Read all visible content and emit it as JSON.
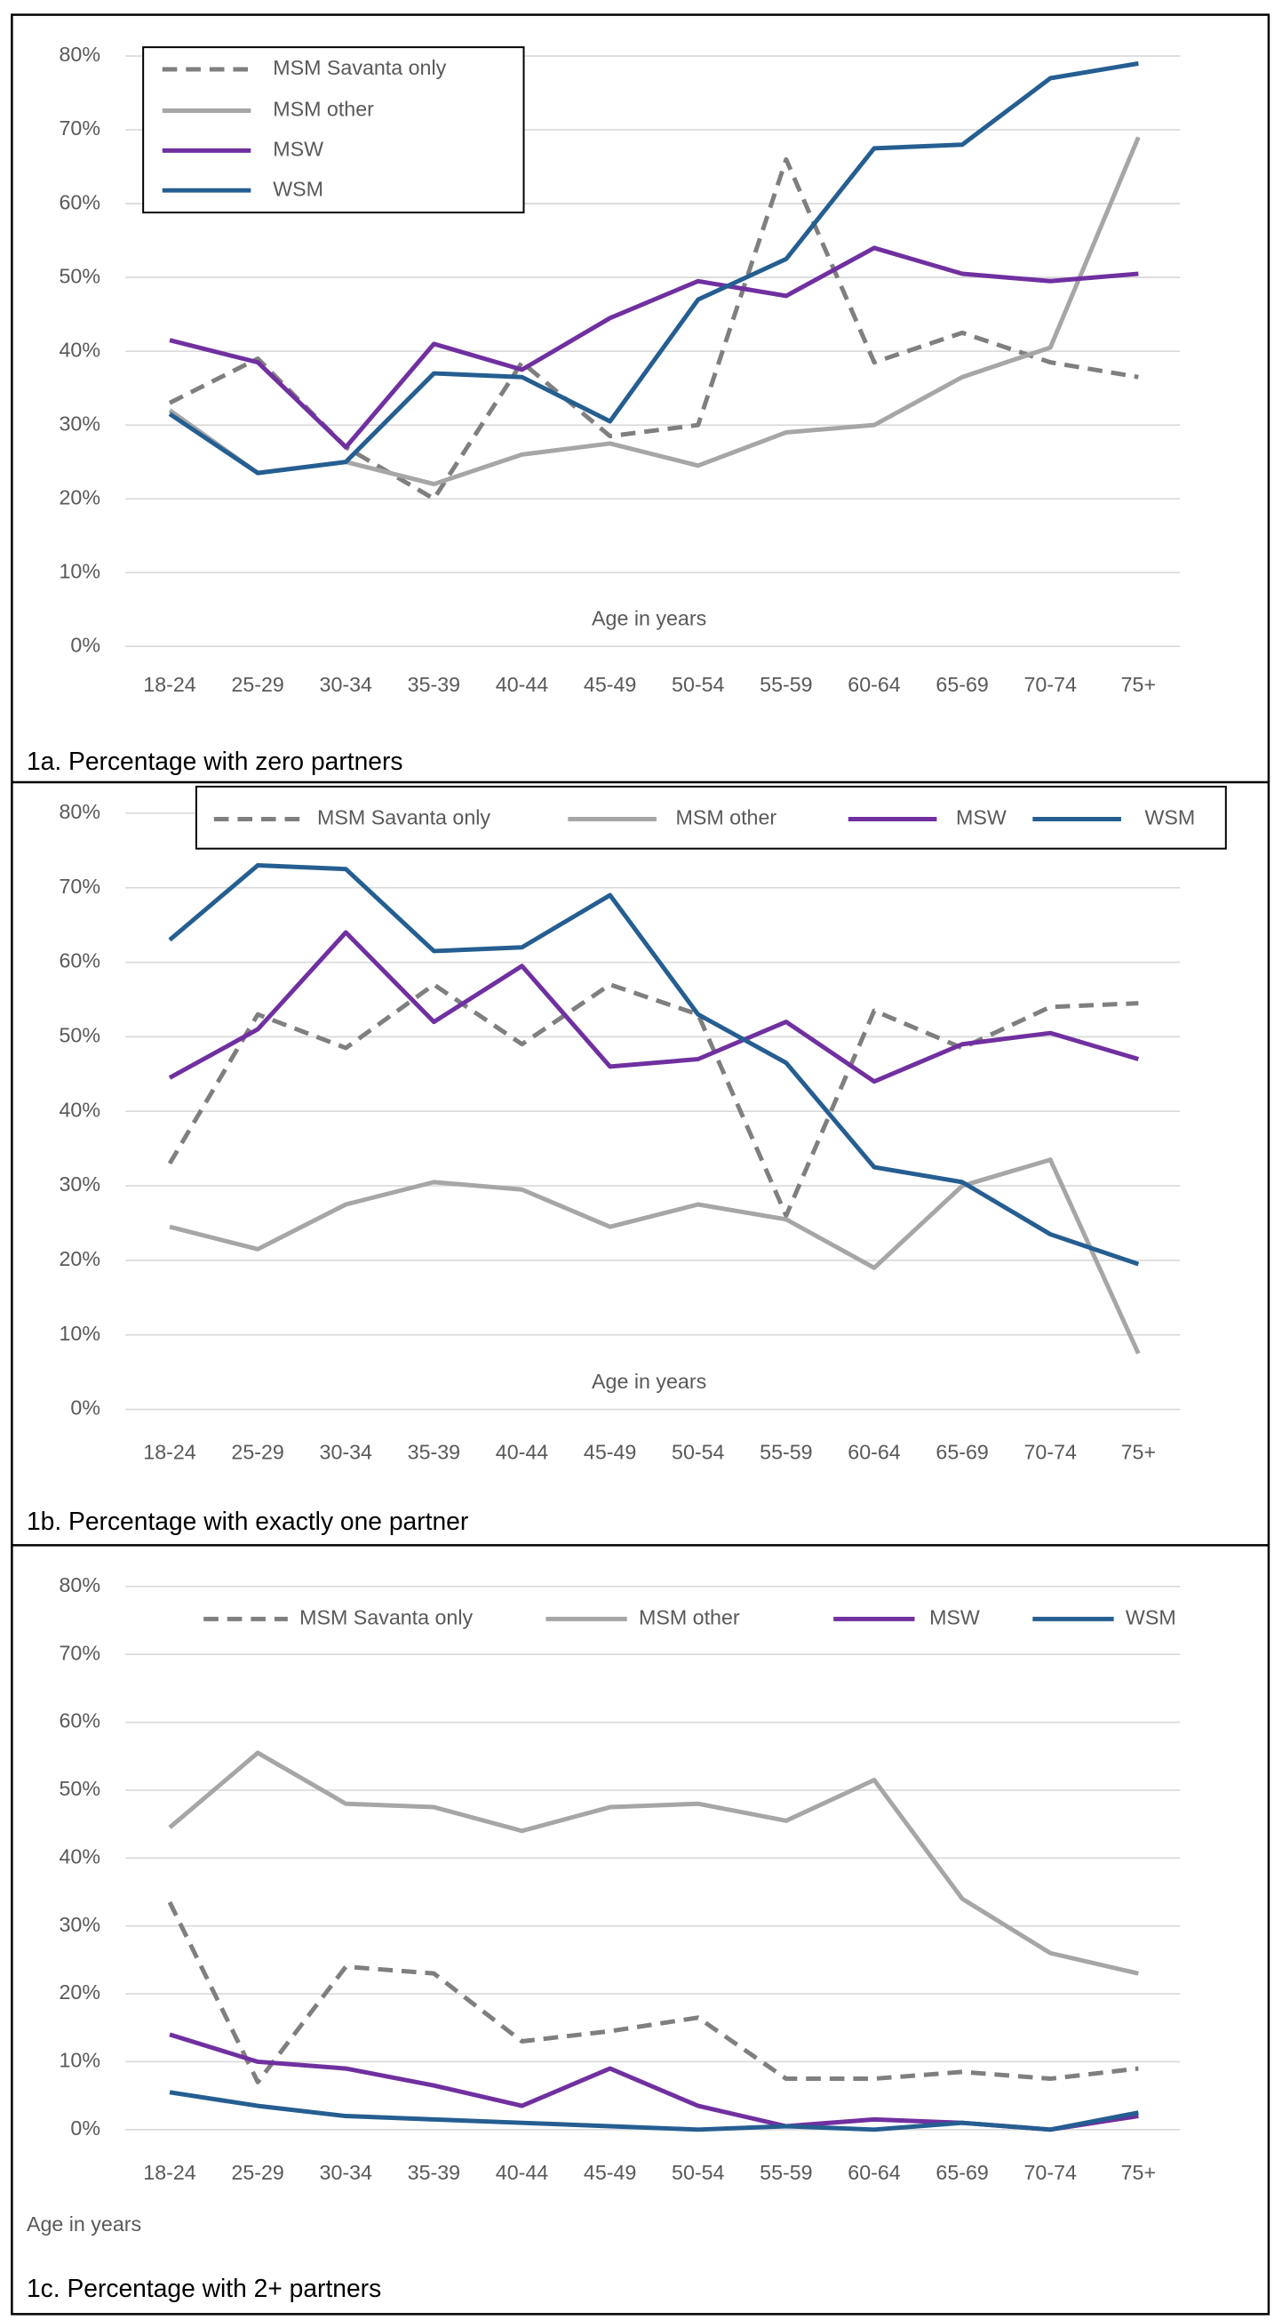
{
  "chart_data": [
    {
      "type": "line",
      "title": "1a. Percentage with zero partners",
      "x_label": "Age in years",
      "categories": [
        "18-24",
        "25-29",
        "30-34",
        "35-39",
        "40-44",
        "45-49",
        "50-54",
        "55-59",
        "60-64",
        "65-69",
        "70-74",
        "75+"
      ],
      "series": [
        {
          "name": "MSM Savanta only",
          "color": "#7f7f7f",
          "dash": "dashed",
          "values": [
            33,
            39,
            27,
            20,
            38.5,
            28.5,
            30,
            66,
            38.5,
            42.5,
            38.5,
            36.5
          ]
        },
        {
          "name": "MSM other",
          "color": "#a6a6a6",
          "values": [
            32,
            23.5,
            25,
            22,
            26,
            27.5,
            24.5,
            29,
            30,
            36.5,
            40.5,
            69
          ]
        },
        {
          "name": "MSW",
          "color": "#7030a0",
          "values": [
            41.5,
            38.5,
            27,
            41,
            37.5,
            44.5,
            49.5,
            47.5,
            54,
            50.5,
            49.5,
            50.5
          ]
        },
        {
          "name": "WSM",
          "color": "#255e91",
          "values": [
            31.5,
            23.5,
            25,
            37,
            36.5,
            30.5,
            47,
            52.5,
            67.5,
            68,
            77,
            79
          ]
        }
      ],
      "ylim": [
        0,
        80
      ],
      "yticks": [
        {
          "value": 0,
          "label": "0%"
        },
        {
          "value": 10,
          "label": "10%"
        },
        {
          "value": 20,
          "label": "20%"
        },
        {
          "value": 30,
          "label": "30%"
        },
        {
          "value": 40,
          "label": "40%"
        },
        {
          "value": 50,
          "label": "50%"
        },
        {
          "value": 60,
          "label": "60%"
        },
        {
          "value": 70,
          "label": "70%"
        },
        {
          "value": 80,
          "label": "80%"
        }
      ],
      "grid": true,
      "legend": "top-left"
    },
    {
      "type": "line",
      "title": "1b. Percentage with exactly one partner",
      "x_label": "Age in years",
      "categories": [
        "18-24",
        "25-29",
        "30-34",
        "35-39",
        "40-44",
        "45-49",
        "50-54",
        "55-59",
        "60-64",
        "65-69",
        "70-74",
        "75+"
      ],
      "series": [
        {
          "name": "MSM Savanta only",
          "color": "#7f7f7f",
          "dash": "dashed",
          "values": [
            33,
            53,
            48.5,
            57,
            49,
            57,
            53,
            26,
            53.5,
            48.5,
            54,
            54.5
          ]
        },
        {
          "name": "MSM other",
          "color": "#a6a6a6",
          "values": [
            24.5,
            21.5,
            27.5,
            30.5,
            29.5,
            24.5,
            27.5,
            25.5,
            19,
            30,
            33.5,
            7.5
          ]
        },
        {
          "name": "MSW",
          "color": "#7030a0",
          "values": [
            44.5,
            51,
            64,
            52,
            59.5,
            46,
            47,
            52,
            44,
            49,
            50.5,
            47
          ]
        },
        {
          "name": "WSM",
          "color": "#255e91",
          "values": [
            63,
            73,
            72.5,
            61.5,
            62,
            69,
            53,
            46.5,
            32.5,
            30.5,
            23.5,
            19.5
          ]
        }
      ],
      "ylim": [
        0,
        80
      ],
      "yticks": [
        {
          "value": 0,
          "label": "0%"
        },
        {
          "value": 10,
          "label": "10%"
        },
        {
          "value": 20,
          "label": "20%"
        },
        {
          "value": 30,
          "label": "30%"
        },
        {
          "value": 40,
          "label": "40%"
        },
        {
          "value": 50,
          "label": "50%"
        },
        {
          "value": 60,
          "label": "60%"
        },
        {
          "value": 70,
          "label": "70%"
        },
        {
          "value": 80,
          "label": "80%"
        }
      ],
      "grid": true,
      "legend": "top"
    },
    {
      "type": "line",
      "title": "1c. Percentage with 2+ partners",
      "x_label": "Age in years",
      "categories": [
        "18-24",
        "25-29",
        "30-34",
        "35-39",
        "40-44",
        "45-49",
        "50-54",
        "55-59",
        "60-64",
        "65-69",
        "70-74",
        "75+"
      ],
      "series": [
        {
          "name": "MSM Savanta only",
          "color": "#7f7f7f",
          "dash": "dashed",
          "values": [
            33.5,
            7,
            24,
            23,
            13,
            14.5,
            16.5,
            7.5,
            7.5,
            8.5,
            7.5,
            9
          ]
        },
        {
          "name": "MSM other",
          "color": "#a6a6a6",
          "values": [
            44.5,
            55.5,
            48,
            47.5,
            44,
            47.5,
            48,
            45.5,
            51.5,
            34,
            26,
            23
          ]
        },
        {
          "name": "MSW",
          "color": "#7030a0",
          "values": [
            14,
            10,
            9,
            6.5,
            3.5,
            9,
            3.5,
            0.5,
            1.5,
            1,
            0,
            2
          ]
        },
        {
          "name": "WSM",
          "color": "#255e91",
          "values": [
            5.5,
            3.5,
            2,
            1.5,
            1,
            0.5,
            0,
            0.5,
            0,
            1,
            0,
            2.5
          ]
        }
      ],
      "ylim": [
        0,
        80
      ],
      "yticks": [
        {
          "value": 0,
          "label": "0%"
        },
        {
          "value": 10,
          "label": "10%"
        },
        {
          "value": 20,
          "label": "20%"
        },
        {
          "value": 30,
          "label": "30%"
        },
        {
          "value": 40,
          "label": "40%"
        },
        {
          "value": 50,
          "label": "50%"
        },
        {
          "value": 60,
          "label": "60%"
        },
        {
          "value": 70,
          "label": "70%"
        },
        {
          "value": 80,
          "label": "80%"
        }
      ],
      "grid": true,
      "legend": "top"
    }
  ]
}
